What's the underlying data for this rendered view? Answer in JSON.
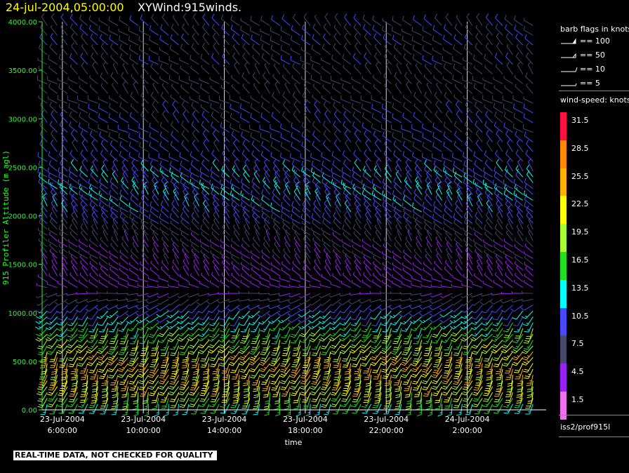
{
  "header": {
    "datetime": "24-jul-2004,05:00:00",
    "product": "XYWind:915winds."
  },
  "quality_note": "REAL-TIME DATA, NOT CHECKED FOR QUALITY",
  "source_id": "iss2/prof915l",
  "colors": {
    "background": "#000000",
    "axis": "#ffffff",
    "ytick_label": "#22ff22",
    "header_date": "#ffff00"
  },
  "legend": {
    "barb_title": "barb flags in knots",
    "barb_items": [
      "== 100",
      "== 50",
      "== 10",
      "== 5"
    ],
    "speed_title": "wind-speed: knots",
    "speed_bins": [
      {
        "label": "31.5",
        "color": "#ff1040"
      },
      {
        "label": "28.5",
        "color": "#ff8a00"
      },
      {
        "label": "25.5",
        "color": "#ffb000"
      },
      {
        "label": "22.5",
        "color": "#ffff00"
      },
      {
        "label": "19.5",
        "color": "#a8ff30"
      },
      {
        "label": "16.5",
        "color": "#20e020"
      },
      {
        "label": "13.5",
        "color": "#00ffff"
      },
      {
        "label": "10.5",
        "color": "#4848ff"
      },
      {
        "label": "7.5",
        "color": "#46466e"
      },
      {
        "label": "4.5",
        "color": "#9a20f8"
      },
      {
        "label": "1.5",
        "color": "#f070f0"
      }
    ]
  },
  "chart_data": {
    "type": "wind-barb time-height plot",
    "ylabel": "915 Profiler Altitude (m agl)",
    "xlabel": "time",
    "ylim": [
      0,
      4000
    ],
    "yticks": [
      "0.00",
      "500.00",
      "1000.00",
      "1500.00",
      "2000.00",
      "2500.00",
      "3000.00",
      "3500.00",
      "4000.00"
    ],
    "xticks": [
      {
        "date": "23-Jul-2004",
        "time": "6:00:00",
        "hours": 6
      },
      {
        "date": "23-Jul-2004",
        "time": "10:00:00",
        "hours": 10
      },
      {
        "date": "23-Jul-2004",
        "time": "14:00:00",
        "hours": 14
      },
      {
        "date": "23-Jul-2004",
        "time": "18:00:00",
        "hours": 18
      },
      {
        "date": "23-Jul-2004",
        "time": "22:00:00",
        "hours": 22
      },
      {
        "date": "24-Jul-2004",
        "time": "2:00:00",
        "hours": 26
      }
    ],
    "xlim_hours": [
      5.0,
      29.9
    ],
    "grid": "vertical lines at labeled times",
    "profile_interval_minutes": 30,
    "speed_units": "knots",
    "rows": [
      {
        "alt": 60,
        "speed": 14.5,
        "dir": 193
      },
      {
        "alt": 120,
        "speed": 17.9,
        "dir": 201
      },
      {
        "alt": 180,
        "speed": 20.2,
        "dir": 197
      },
      {
        "alt": 240,
        "speed": 21.9,
        "dir": 203
      },
      {
        "alt": 300,
        "speed": 21.5,
        "dir": 202
      },
      {
        "alt": 360,
        "speed": 23.3,
        "dir": 200
      },
      {
        "alt": 420,
        "speed": 22.5,
        "dir": 205
      },
      {
        "alt": 480,
        "speed": 24.1,
        "dir": 203
      },
      {
        "alt": 540,
        "speed": 22.9,
        "dir": 209
      },
      {
        "alt": 600,
        "speed": 22.3,
        "dir": 204
      },
      {
        "alt": 660,
        "speed": 19.9,
        "dir": 213
      },
      {
        "alt": 720,
        "speed": 19.2,
        "dir": 207
      },
      {
        "alt": 780,
        "speed": 17.7,
        "dir": 216
      },
      {
        "alt": 840,
        "speed": 16.8,
        "dir": 209
      },
      {
        "alt": 900,
        "speed": 14.3,
        "dir": 219
      },
      {
        "alt": 960,
        "speed": 13.2,
        "dir": 223
      },
      {
        "alt": 1020,
        "speed": 11.6,
        "dir": 226
      },
      {
        "alt": 1080,
        "speed": 10.5,
        "dir": 235
      },
      {
        "alt": 1140,
        "speed": 7.3,
        "dir": 247
      },
      {
        "alt": 1200,
        "speed": 6.0,
        "dir": 258
      },
      {
        "alt": 1260,
        "speed": 4.8,
        "dir": 290
      },
      {
        "alt": 1320,
        "speed": 4.1,
        "dir": 300
      },
      {
        "alt": 1380,
        "speed": 4.9,
        "dir": 318
      },
      {
        "alt": 1440,
        "speed": 5.1,
        "dir": 315
      },
      {
        "alt": 1500,
        "speed": 5.6,
        "dir": 322
      },
      {
        "alt": 1560,
        "speed": 6.0,
        "dir": 312
      },
      {
        "alt": 1620,
        "speed": 6.4,
        "dir": 318
      },
      {
        "alt": 1680,
        "speed": 6.4,
        "dir": 314
      },
      {
        "alt": 1740,
        "speed": 6.7,
        "dir": 325
      },
      {
        "alt": 1800,
        "speed": 7.3,
        "dir": 314
      },
      {
        "alt": 1860,
        "speed": 7.6,
        "dir": 322
      },
      {
        "alt": 1920,
        "speed": 9.5,
        "dir": 313
      },
      {
        "alt": 1980,
        "speed": 10.1,
        "dir": 320
      },
      {
        "alt": 2040,
        "speed": 10.8,
        "dir": 312
      },
      {
        "alt": 2100,
        "speed": 11.3,
        "dir": 321
      },
      {
        "alt": 2160,
        "speed": 11.6,
        "dir": 315
      },
      {
        "alt": 2220,
        "speed": 12.3,
        "dir": 321
      },
      {
        "alt": 2280,
        "speed": 11.4,
        "dir": 309
      },
      {
        "alt": 2340,
        "speed": 11.1,
        "dir": 318
      },
      {
        "alt": 2400,
        "speed": 11.5,
        "dir": 311
      },
      {
        "alt": 2460,
        "speed": 11.0,
        "dir": 319
      },
      {
        "alt": 2560,
        "speed": 10.4,
        "dir": 305
      },
      {
        "alt": 2660,
        "speed": 10.0,
        "dir": 315
      },
      {
        "alt": 2760,
        "speed": 9.9,
        "dir": 310
      },
      {
        "alt": 2860,
        "speed": 9.2,
        "dir": 302
      },
      {
        "alt": 2960,
        "speed": 8.9,
        "dir": 313
      },
      {
        "alt": 3060,
        "speed": 8.2,
        "dir": 311
      },
      {
        "alt": 3160,
        "speed": 7.6,
        "dir": 302
      },
      {
        "alt": 3260,
        "speed": 7.0,
        "dir": 318
      },
      {
        "alt": 3360,
        "speed": 7.4,
        "dir": 305
      },
      {
        "alt": 3460,
        "speed": 7.2,
        "dir": 319
      },
      {
        "alt": 3560,
        "speed": 8.4,
        "dir": 306
      },
      {
        "alt": 3660,
        "speed": 8.0,
        "dir": 312
      },
      {
        "alt": 3760,
        "speed": 8.9,
        "dir": 310
      },
      {
        "alt": 3860,
        "speed": 8.3,
        "dir": 308
      },
      {
        "alt": 3960,
        "speed": 8.5,
        "dir": 314
      }
    ]
  }
}
